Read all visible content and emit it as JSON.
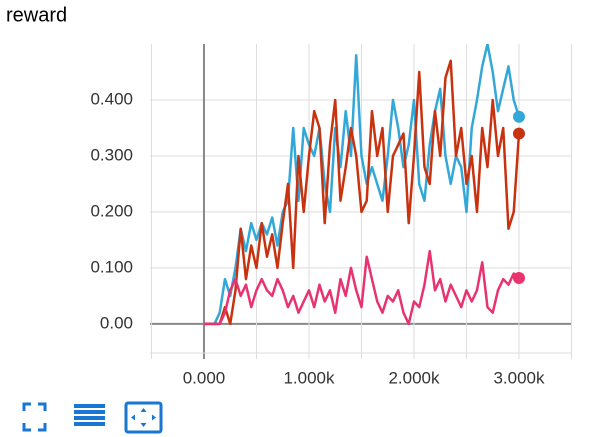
{
  "chart_data": {
    "type": "line",
    "title": "reward",
    "x": [
      0,
      50,
      100,
      150,
      200,
      250,
      300,
      350,
      400,
      450,
      500,
      550,
      600,
      650,
      700,
      750,
      800,
      850,
      900,
      950,
      1000,
      1050,
      1100,
      1150,
      1200,
      1250,
      1300,
      1350,
      1400,
      1450,
      1500,
      1550,
      1600,
      1650,
      1700,
      1750,
      1800,
      1850,
      1900,
      1950,
      2000,
      2050,
      2100,
      2150,
      2200,
      2250,
      2300,
      2350,
      2400,
      2450,
      2500,
      2550,
      2600,
      2650,
      2700,
      2750,
      2800,
      2850,
      2900,
      2950,
      3000
    ],
    "series": [
      {
        "color": "#33a8d8",
        "values": [
          0,
          0,
          0,
          0.02,
          0.08,
          0.05,
          0.1,
          0.17,
          0.13,
          0.18,
          0.15,
          0.18,
          0.16,
          0.19,
          0.14,
          0.2,
          0.22,
          0.35,
          0.22,
          0.35,
          0.32,
          0.3,
          0.35,
          0.25,
          0.2,
          0.35,
          0.28,
          0.38,
          0.3,
          0.48,
          0.3,
          0.25,
          0.28,
          0.25,
          0.22,
          0.3,
          0.4,
          0.35,
          0.28,
          0.32,
          0.4,
          0.25,
          0.22,
          0.32,
          0.38,
          0.42,
          0.3,
          0.25,
          0.3,
          0.28,
          0.2,
          0.35,
          0.4,
          0.46,
          0.5,
          0.45,
          0.38,
          0.42,
          0.46,
          0.4,
          0.37
        ]
      },
      {
        "color": "#c8320e",
        "values": [
          0,
          0,
          0,
          0,
          0.03,
          0,
          0.06,
          0.17,
          0.08,
          0.14,
          0.1,
          0.18,
          0.12,
          0.16,
          0.1,
          0.18,
          0.25,
          0.1,
          0.3,
          0.2,
          0.3,
          0.38,
          0.35,
          0.18,
          0.32,
          0.4,
          0.22,
          0.28,
          0.35,
          0.3,
          0.2,
          0.22,
          0.38,
          0.3,
          0.35,
          0.2,
          0.3,
          0.32,
          0.34,
          0.18,
          0.3,
          0.45,
          0.28,
          0.25,
          0.38,
          0.3,
          0.44,
          0.47,
          0.3,
          0.35,
          0.25,
          0.3,
          0.2,
          0.35,
          0.28,
          0.4,
          0.3,
          0.35,
          0.17,
          0.2,
          0.34
        ]
      },
      {
        "color": "#e8336f",
        "values": [
          0,
          0,
          0,
          0,
          0.02,
          0.06,
          0.08,
          0.05,
          0.07,
          0.03,
          0.06,
          0.08,
          0.06,
          0.05,
          0.08,
          0.06,
          0.03,
          0.05,
          0.02,
          0.04,
          0.06,
          0.03,
          0.07,
          0.04,
          0.06,
          0.02,
          0.08,
          0.05,
          0.1,
          0.06,
          0.03,
          0.12,
          0.08,
          0.04,
          0.02,
          0.05,
          0.04,
          0.06,
          0.02,
          0,
          0.04,
          0.03,
          0.07,
          0.13,
          0.06,
          0.08,
          0.04,
          0.07,
          0.05,
          0.03,
          0.06,
          0.04,
          0.06,
          0.11,
          0.03,
          0.02,
          0.06,
          0.08,
          0.07,
          0.09,
          0.082
        ]
      }
    ],
    "xlim": [
      -514,
      3505
    ],
    "ylim": [
      -0.052,
      0.5
    ],
    "xticks": [
      {
        "value": 0,
        "label": "0.000"
      },
      {
        "value": 1000,
        "label": "1.000k"
      },
      {
        "value": 2000,
        "label": "2.000k"
      },
      {
        "value": 3000,
        "label": "3.000k"
      }
    ],
    "yticks": [
      {
        "value": 0,
        "label": "0.00"
      },
      {
        "value": 0.1,
        "label": "0.100"
      },
      {
        "value": 0.2,
        "label": "0.200"
      },
      {
        "value": 0.3,
        "label": "0.300"
      },
      {
        "value": 0.4,
        "label": "0.400"
      }
    ],
    "grid": true
  }
}
